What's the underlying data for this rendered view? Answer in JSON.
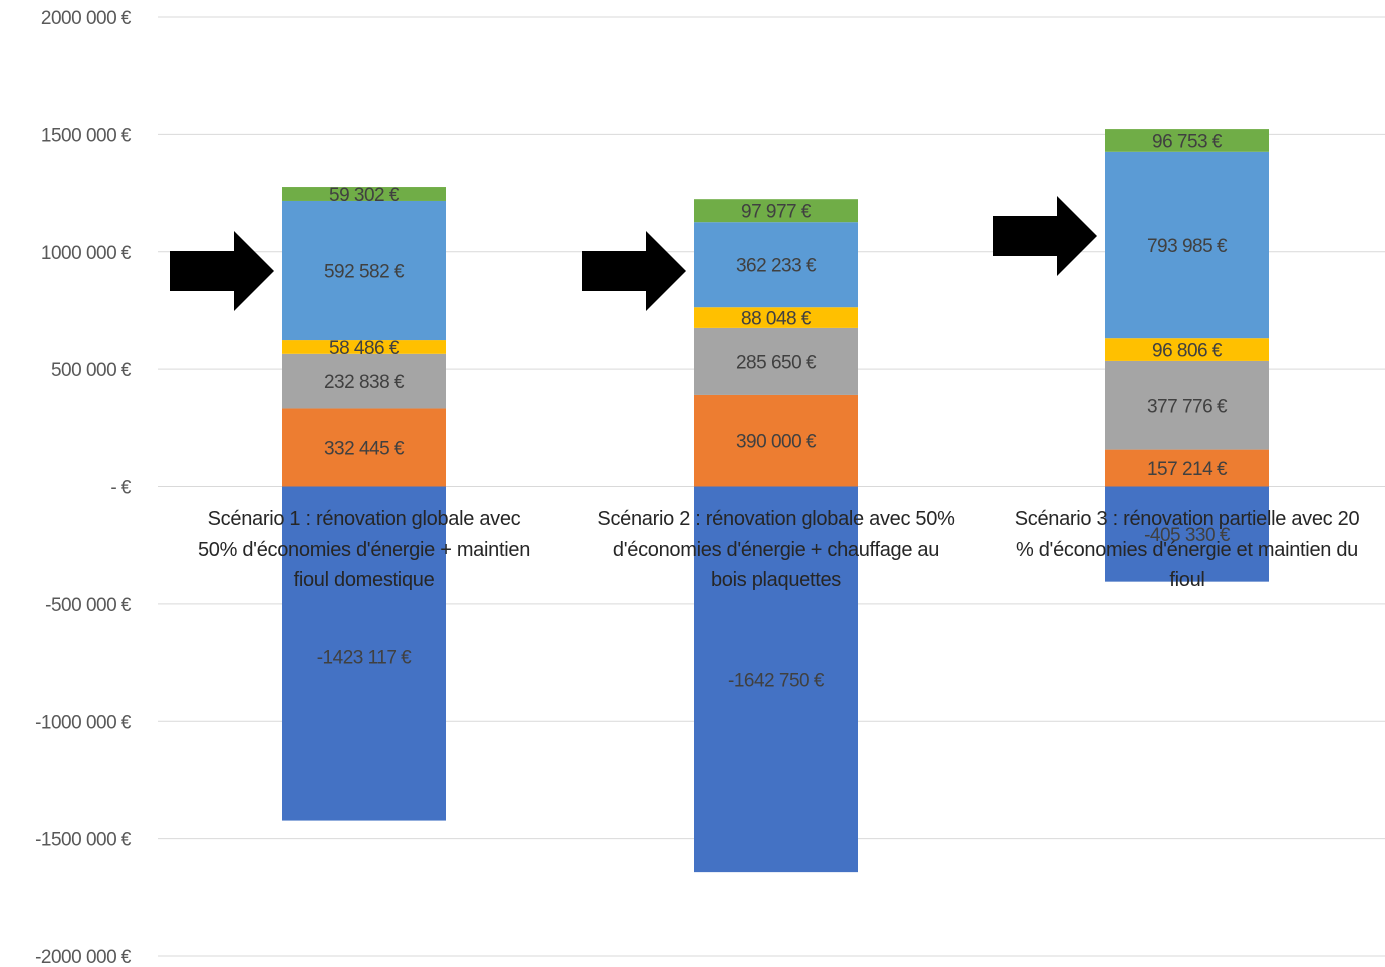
{
  "chart_data": {
    "type": "bar",
    "stacked": true,
    "title": "",
    "xlabel": "",
    "ylabel": "",
    "ylim": [
      -2000000,
      2000000
    ],
    "y_ticks": [
      {
        "value": 2000000,
        "label": "2000 000 €"
      },
      {
        "value": 1500000,
        "label": "1500 000 €"
      },
      {
        "value": 1000000,
        "label": "1000 000 €"
      },
      {
        "value": 500000,
        "label": "500 000 €"
      },
      {
        "value": 0,
        "label": "-  €"
      },
      {
        "value": -500000,
        "label": "-500 000 €"
      },
      {
        "value": -1000000,
        "label": "-1000 000 €"
      },
      {
        "value": -1500000,
        "label": "-1500 000 €"
      },
      {
        "value": -2000000,
        "label": "-2000 000 €"
      }
    ],
    "grid": true,
    "legend": "none",
    "categories": [
      [
        "Scénario 1 :  rénovation globale avec",
        "50% d'économies d'énergie + maintien",
        "fioul domestique"
      ],
      [
        "Scénario 2 : rénovation globale avec 50%",
        "d'économies d'énergie + chauffage au",
        "bois plaquettes"
      ],
      [
        "Scénario 3 : rénovation partielle avec 20",
        "% d'économies d'énergie et maintien du",
        "fioul"
      ]
    ],
    "series": [
      {
        "color": "#4472C4",
        "values": [
          -1423117,
          -1642750,
          -405330
        ],
        "labels": [
          "-1423 117 €",
          "-1642 750 €",
          "-405 330 €"
        ]
      },
      {
        "color": "#ED7D31",
        "values": [
          332445,
          390000,
          157214
        ],
        "labels": [
          "332 445 €",
          "390 000 €",
          "157 214 €"
        ]
      },
      {
        "color": "#A5A5A5",
        "values": [
          232838,
          285650,
          377776
        ],
        "labels": [
          "232 838 €",
          "285 650 €",
          "377 776 €"
        ]
      },
      {
        "color": "#FFC000",
        "values": [
          58486,
          88048,
          96806
        ],
        "labels": [
          "58 486 €",
          "88 048 €",
          "96 806 €"
        ]
      },
      {
        "color": "#5B9BD5",
        "values": [
          592582,
          362233,
          793985
        ],
        "labels": [
          "592 582 €",
          "362 233 €",
          "793 985 €"
        ]
      },
      {
        "color": "#70AD47",
        "values": [
          59302,
          97977,
          96753
        ],
        "labels": [
          "59 302 €",
          "97 977 €",
          "96 753 €"
        ]
      }
    ],
    "annotations": [
      {
        "type": "arrow",
        "direction": "right",
        "color": "#000000",
        "target_category": 0,
        "target_series": 4
      },
      {
        "type": "arrow",
        "direction": "right",
        "color": "#000000",
        "target_category": 1,
        "target_series": 4
      },
      {
        "type": "arrow",
        "direction": "right",
        "color": "#000000",
        "target_category": 2,
        "target_series": 4
      }
    ]
  }
}
